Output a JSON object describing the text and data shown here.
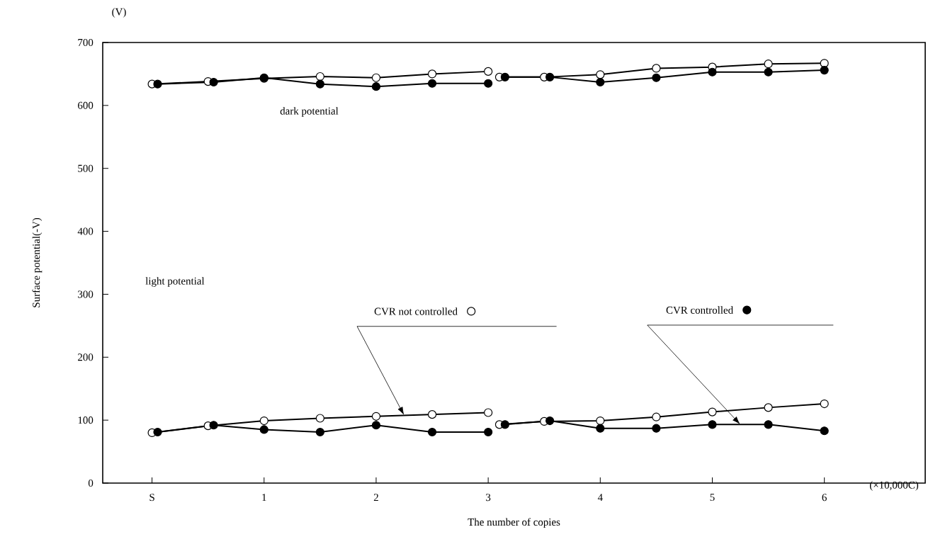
{
  "chart_data": {
    "type": "line",
    "xlabel": "The number of copies",
    "ylabel": "Surface potential(-V)",
    "annotations": [
      "dark potential",
      "light potential",
      "(V)",
      "(×10,000C)"
    ],
    "xlim": [
      -0.44,
      6.9
    ],
    "ylim": [
      0,
      700
    ],
    "xticks": [
      {
        "value": 0,
        "label": "S"
      },
      1,
      2,
      3,
      4,
      5,
      6
    ],
    "yticks": [
      0,
      100,
      200,
      300,
      400,
      500,
      600,
      700
    ],
    "marker": "circle",
    "legend": "bottom right",
    "series": [
      {
        "color": "#ffffff",
        "x": [
          0,
          0.5,
          1,
          1.5,
          2,
          2.5,
          3,
          null,
          3.1,
          3.5,
          4,
          4.5,
          5,
          5.5,
          6
        ],
        "values": [
          634,
          638,
          643,
          646,
          644,
          650,
          654,
          null,
          645,
          645,
          649,
          659,
          661,
          666,
          667
        ]
      },
      {
        "color": "#000000",
        "x": [
          0.05,
          0.55,
          1,
          1.5,
          2,
          2.5,
          3,
          null,
          3.15,
          3.55,
          4,
          4.5,
          5,
          5.5,
          6
        ],
        "values": [
          634,
          637,
          644,
          634,
          630,
          635,
          635,
          null,
          645,
          645,
          637,
          644,
          653,
          653,
          656
        ]
      },
      {
        "name": "CVR not controlled",
        "color": "#ffffff",
        "x": [
          0,
          0.5,
          1,
          1.5,
          2,
          2.5,
          3,
          null,
          3.1,
          3.5,
          4,
          4.5,
          5,
          5.5,
          6
        ],
        "values": [
          80,
          91,
          99,
          103,
          106,
          109,
          112,
          null,
          93,
          98,
          99,
          105,
          113,
          120,
          126
        ]
      },
      {
        "name": "CVR controlled",
        "color": "#000000",
        "x": [
          0.05,
          0.55,
          1,
          1.5,
          2,
          2.5,
          3,
          null,
          3.15,
          3.55,
          4,
          4.5,
          5,
          5.5,
          6
        ],
        "values": [
          81,
          92,
          85,
          81,
          92,
          81,
          81,
          null,
          93,
          99,
          87,
          87,
          93,
          93,
          83
        ]
      }
    ]
  }
}
